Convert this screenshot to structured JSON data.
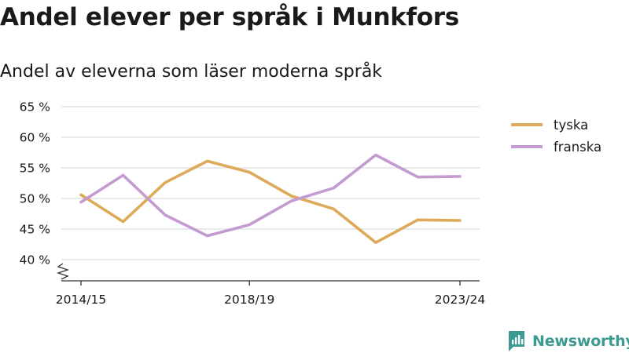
{
  "title": "Andel elever per språk i Munkfors",
  "subtitle": "Andel av eleverna som läser moderna språk",
  "brand": {
    "name": "Newsworthy",
    "icon": "newsworthy-logo-icon",
    "color": "#3d9a90"
  },
  "chart_data": {
    "type": "line",
    "x": [
      "2014/15",
      "2015/16",
      "2016/17",
      "2017/18",
      "2018/19",
      "2019/20",
      "2020/21",
      "2021/22",
      "2022/23",
      "2023/24"
    ],
    "x_tick_labels": [
      "2014/15",
      "2018/19",
      "2023/24"
    ],
    "y_tick_values": [
      40,
      45,
      50,
      55,
      60,
      65
    ],
    "y_tick_labels": [
      "40 %",
      "45 %",
      "50 %",
      "55 %",
      "60 %",
      "65 %"
    ],
    "ylim": [
      40,
      65
    ],
    "y_axis_break": true,
    "grid": "horizontal",
    "legend_position": "top-right",
    "series": [
      {
        "name": "tyska",
        "color": "#dcaa58",
        "values": [
          50.6,
          46.2,
          52.6,
          56.1,
          54.3,
          50.4,
          48.3,
          42.8,
          46.5,
          46.4
        ]
      },
      {
        "name": "franska",
        "color": "#c39bd1",
        "values": [
          49.4,
          53.8,
          47.3,
          43.9,
          45.7,
          49.6,
          51.7,
          57.1,
          53.5,
          53.6
        ]
      }
    ]
  }
}
